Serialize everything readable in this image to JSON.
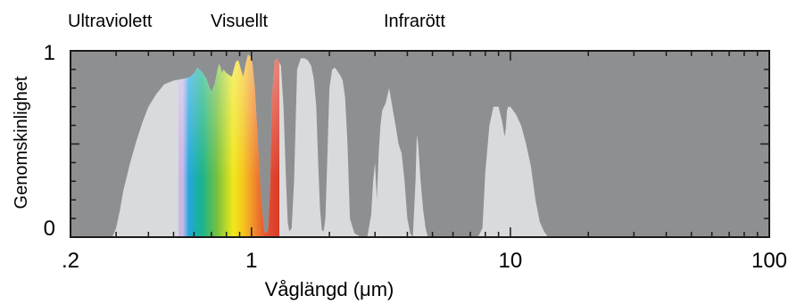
{
  "chart_data": {
    "type": "area",
    "xscale": "log",
    "xlim": [
      0.2,
      100
    ],
    "ylim": [
      0,
      1
    ],
    "xlabel": "Våglängd (μm)",
    "ylabel": "Genomskinlighet",
    "xticks": [
      {
        "value": 0.2,
        "label": ".2"
      },
      {
        "value": 1,
        "label": "1"
      },
      {
        "value": 10,
        "label": "10"
      },
      {
        "value": 100,
        "label": "100"
      }
    ],
    "yticks": [
      {
        "value": 0,
        "label": "0"
      },
      {
        "value": 1,
        "label": "1"
      }
    ],
    "regions": [
      {
        "label": "Ultraviolett"
      },
      {
        "label": "Visuellt"
      },
      {
        "label": "Infrarött"
      }
    ],
    "colors": {
      "background": "#8e8f91",
      "transmission": "#d9dadb",
      "frame": "#1a1a1a"
    },
    "series": [
      {
        "x": [
          0.29,
          0.3,
          0.31,
          0.32,
          0.34,
          0.36,
          0.38,
          0.4,
          0.43,
          0.46,
          0.5,
          0.55,
          0.58,
          0.6,
          0.62,
          0.65,
          0.67,
          0.69,
          0.7,
          0.72,
          0.74,
          0.75,
          0.76,
          0.77,
          0.78,
          0.8,
          0.84,
          0.87,
          0.89,
          0.91,
          0.93,
          0.95,
          0.97,
          0.99,
          1.01,
          1.03,
          1.06,
          1.09,
          1.12,
          1.14,
          1.16,
          1.18,
          1.2,
          1.23,
          1.26,
          1.3,
          1.33,
          1.36,
          1.38,
          1.4,
          1.43,
          1.46,
          1.5,
          1.55,
          1.6,
          1.65,
          1.7,
          1.74,
          1.78,
          1.81,
          1.84,
          1.87,
          1.9,
          1.93,
          1.96,
          2.0,
          2.05,
          2.1,
          2.15,
          2.2,
          2.25,
          2.3,
          2.35,
          2.4,
          2.5,
          2.65,
          2.8,
          2.9,
          2.95,
          3.0,
          3.05,
          3.1,
          3.15,
          3.2,
          3.3,
          3.4,
          3.5,
          3.6,
          3.7,
          3.8,
          3.9,
          4.0,
          4.1,
          4.2,
          4.3,
          4.35,
          4.4,
          4.5,
          4.6,
          4.7,
          4.8,
          4.9,
          5.0,
          5.2,
          5.5,
          6.0,
          7.0,
          7.5,
          7.8,
          8.0,
          8.3,
          8.6,
          9.0,
          9.3,
          9.5,
          9.6,
          9.7,
          9.8,
          10.0,
          10.5,
          11.0,
          11.5,
          12.0,
          12.5,
          13.0,
          13.5,
          14.0,
          14.5,
          15,
          20,
          30,
          50,
          100
        ],
        "y": [
          0,
          0.05,
          0.14,
          0.25,
          0.4,
          0.52,
          0.62,
          0.7,
          0.77,
          0.82,
          0.84,
          0.85,
          0.86,
          0.88,
          0.91,
          0.88,
          0.85,
          0.8,
          0.78,
          0.82,
          0.9,
          0.93,
          0.91,
          0.88,
          0.9,
          0.88,
          0.86,
          0.94,
          0.95,
          0.9,
          0.86,
          0.93,
          0.98,
          0.97,
          0.93,
          0.8,
          0.5,
          0.2,
          0.03,
          0.02,
          0.04,
          0.25,
          0.75,
          0.95,
          0.96,
          0.92,
          0.7,
          0.3,
          0.08,
          0.03,
          0.05,
          0.3,
          0.9,
          0.96,
          0.96,
          0.95,
          0.92,
          0.85,
          0.7,
          0.4,
          0.15,
          0.04,
          0.03,
          0.1,
          0.4,
          0.8,
          0.9,
          0.91,
          0.89,
          0.87,
          0.84,
          0.75,
          0.5,
          0.1,
          0.02,
          0.0,
          0.0,
          0.12,
          0.3,
          0.4,
          0.2,
          0.45,
          0.6,
          0.68,
          0.72,
          0.8,
          0.7,
          0.6,
          0.5,
          0.45,
          0.3,
          0.1,
          0.02,
          0.0,
          0.3,
          0.55,
          0.5,
          0.3,
          0.15,
          0.05,
          0.0,
          0.0,
          0.0,
          0.0,
          0.0,
          0.0,
          0.0,
          0.0,
          0.05,
          0.35,
          0.6,
          0.7,
          0.7,
          0.62,
          0.54,
          0.58,
          0.68,
          0.7,
          0.7,
          0.66,
          0.6,
          0.5,
          0.38,
          0.2,
          0.08,
          0.03,
          0.0,
          0.0,
          0.0,
          0.0,
          0.0,
          0.0,
          0.0
        ]
      }
    ]
  }
}
